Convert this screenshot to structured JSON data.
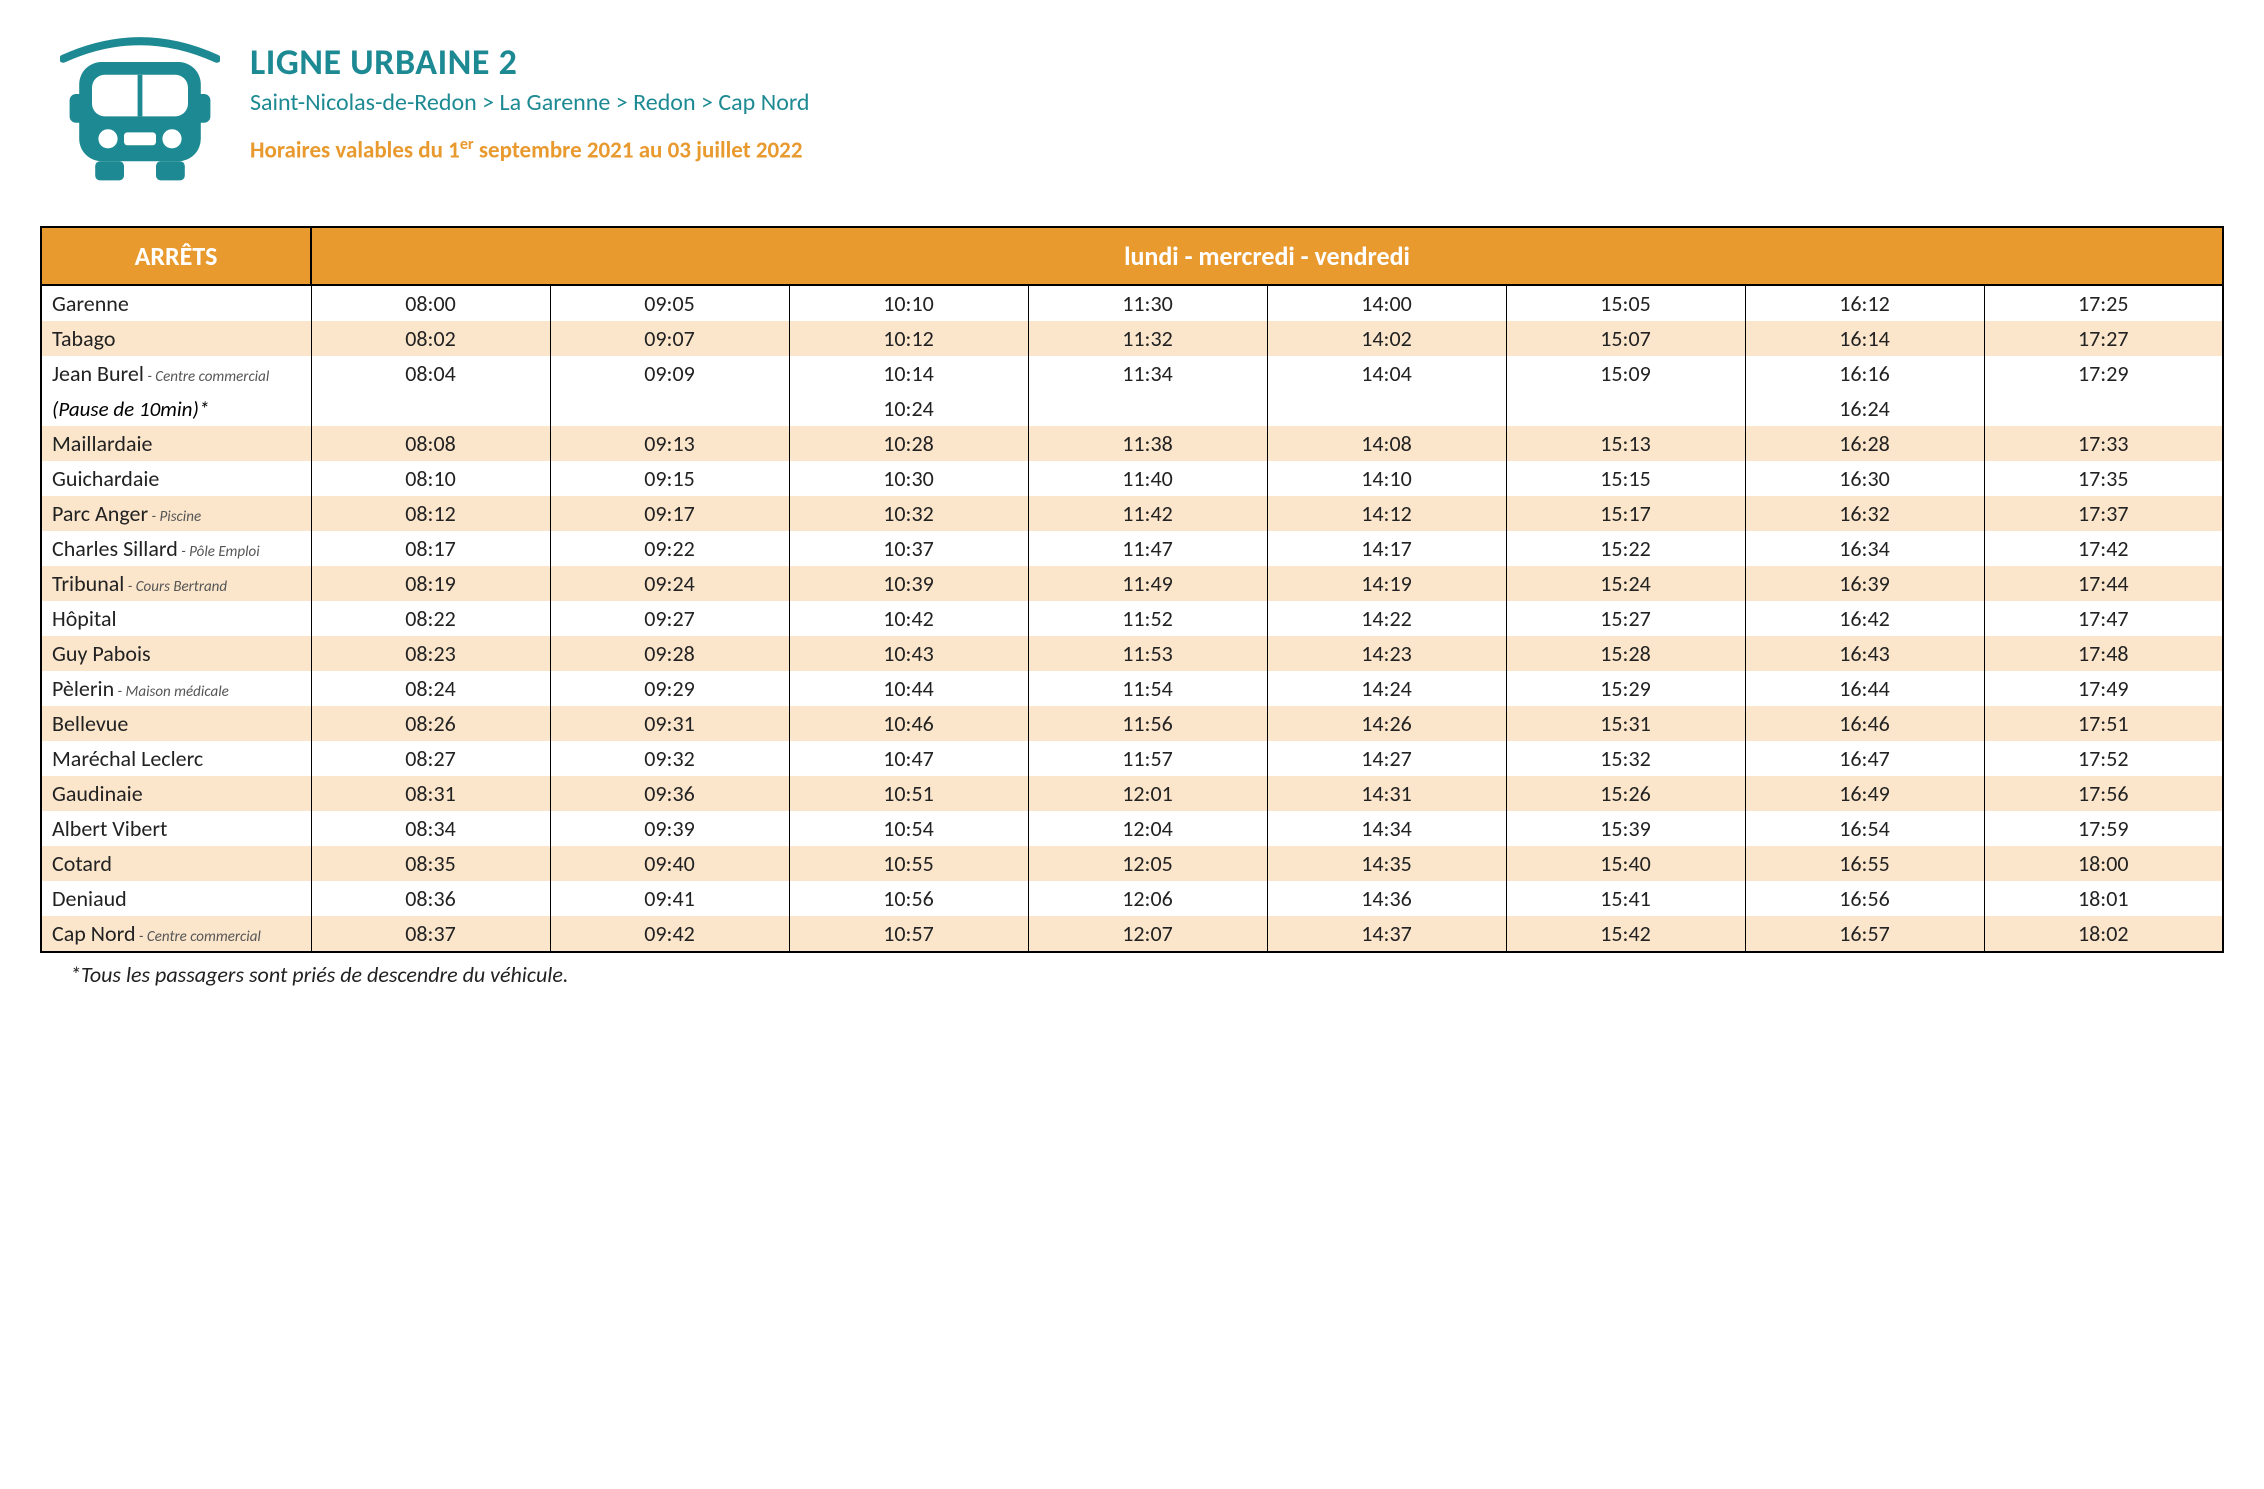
{
  "colors": {
    "brand_teal": "#1d8a93",
    "brand_orange": "#e99a2f",
    "row_alt_bg": "#fbe6cc",
    "border": "#000000",
    "text": "#222222",
    "subtext": "#555555",
    "background": "#ffffff"
  },
  "header": {
    "title": "LIGNE URBAINE 2",
    "route": "Saint-Nicolas-de-Redon > La Garenne > Redon > Cap Nord",
    "validity_prefix": "Horaires valables du 1",
    "validity_sup": "er",
    "validity_suffix": " septembre 2021 au 03 juillet 2022"
  },
  "table": {
    "stops_header": "ARRÊTS",
    "days_header": "lundi - mercredi - vendredi",
    "num_time_cols": 8,
    "rows": [
      {
        "alt": false,
        "stop": "Garenne",
        "sub": "",
        "times": [
          "08:00",
          "09:05",
          "10:10",
          "11:30",
          "14:00",
          "15:05",
          "16:12",
          "17:25"
        ]
      },
      {
        "alt": true,
        "stop": "Tabago",
        "sub": "",
        "times": [
          "08:02",
          "09:07",
          "10:12",
          "11:32",
          "14:02",
          "15:07",
          "16:14",
          "17:27"
        ]
      },
      {
        "alt": false,
        "stop": "Jean Burel",
        "sub": " - Centre commercial",
        "times": [
          "08:04",
          "09:09",
          "10:14",
          "11:34",
          "14:04",
          "15:09",
          "16:16",
          "17:29"
        ]
      },
      {
        "alt": false,
        "pause": true,
        "stop": "(Pause de 10min)*",
        "sub": "",
        "times": [
          "",
          "",
          "10:24",
          "",
          "",
          "",
          "16:24",
          ""
        ]
      },
      {
        "alt": true,
        "stop": "Maillardaie",
        "sub": "",
        "times": [
          "08:08",
          "09:13",
          "10:28",
          "11:38",
          "14:08",
          "15:13",
          "16:28",
          "17:33"
        ]
      },
      {
        "alt": false,
        "stop": "Guichardaie",
        "sub": "",
        "times": [
          "08:10",
          "09:15",
          "10:30",
          "11:40",
          "14:10",
          "15:15",
          "16:30",
          "17:35"
        ]
      },
      {
        "alt": true,
        "stop": "Parc Anger",
        "sub": " - Piscine",
        "times": [
          "08:12",
          "09:17",
          "10:32",
          "11:42",
          "14:12",
          "15:17",
          "16:32",
          "17:37"
        ]
      },
      {
        "alt": false,
        "stop": "Charles Sillard",
        "sub": " - Pôle Emploi",
        "times": [
          "08:17",
          "09:22",
          "10:37",
          "11:47",
          "14:17",
          "15:22",
          "16:34",
          "17:42"
        ]
      },
      {
        "alt": true,
        "stop": "Tribunal",
        "sub": " - Cours Bertrand",
        "times": [
          "08:19",
          "09:24",
          "10:39",
          "11:49",
          "14:19",
          "15:24",
          "16:39",
          "17:44"
        ]
      },
      {
        "alt": false,
        "stop": "Hôpital",
        "sub": "",
        "times": [
          "08:22",
          "09:27",
          "10:42",
          "11:52",
          "14:22",
          "15:27",
          "16:42",
          "17:47"
        ]
      },
      {
        "alt": true,
        "stop": "Guy Pabois",
        "sub": "",
        "times": [
          "08:23",
          "09:28",
          "10:43",
          "11:53",
          "14:23",
          "15:28",
          "16:43",
          "17:48"
        ]
      },
      {
        "alt": false,
        "stop": "Pèlerin",
        "sub": " - Maison médicale",
        "times": [
          "08:24",
          "09:29",
          "10:44",
          "11:54",
          "14:24",
          "15:29",
          "16:44",
          "17:49"
        ]
      },
      {
        "alt": true,
        "stop": "Bellevue",
        "sub": "",
        "times": [
          "08:26",
          "09:31",
          "10:46",
          "11:56",
          "14:26",
          "15:31",
          "16:46",
          "17:51"
        ]
      },
      {
        "alt": false,
        "stop": "Maréchal Leclerc",
        "sub": "",
        "times": [
          "08:27",
          "09:32",
          "10:47",
          "11:57",
          "14:27",
          "15:32",
          "16:47",
          "17:52"
        ]
      },
      {
        "alt": true,
        "stop": "Gaudinaie",
        "sub": "",
        "times": [
          "08:31",
          "09:36",
          "10:51",
          "12:01",
          "14:31",
          "15:26",
          "16:49",
          "17:56"
        ]
      },
      {
        "alt": false,
        "stop": "Albert Vibert",
        "sub": "",
        "times": [
          "08:34",
          "09:39",
          "10:54",
          "12:04",
          "14:34",
          "15:39",
          "16:54",
          "17:59"
        ]
      },
      {
        "alt": true,
        "stop": "Cotard",
        "sub": "",
        "times": [
          "08:35",
          "09:40",
          "10:55",
          "12:05",
          "14:35",
          "15:40",
          "16:55",
          "18:00"
        ]
      },
      {
        "alt": false,
        "stop": "Deniaud",
        "sub": "",
        "times": [
          "08:36",
          "09:41",
          "10:56",
          "12:06",
          "14:36",
          "15:41",
          "16:56",
          "18:01"
        ]
      },
      {
        "alt": true,
        "stop": "Cap Nord",
        "sub": " - Centre commercial",
        "times": [
          "08:37",
          "09:42",
          "10:57",
          "12:07",
          "14:37",
          "15:42",
          "16:57",
          "18:02"
        ]
      }
    ]
  },
  "footnote": "*Tous les passagers sont priés de descendre du véhicule."
}
